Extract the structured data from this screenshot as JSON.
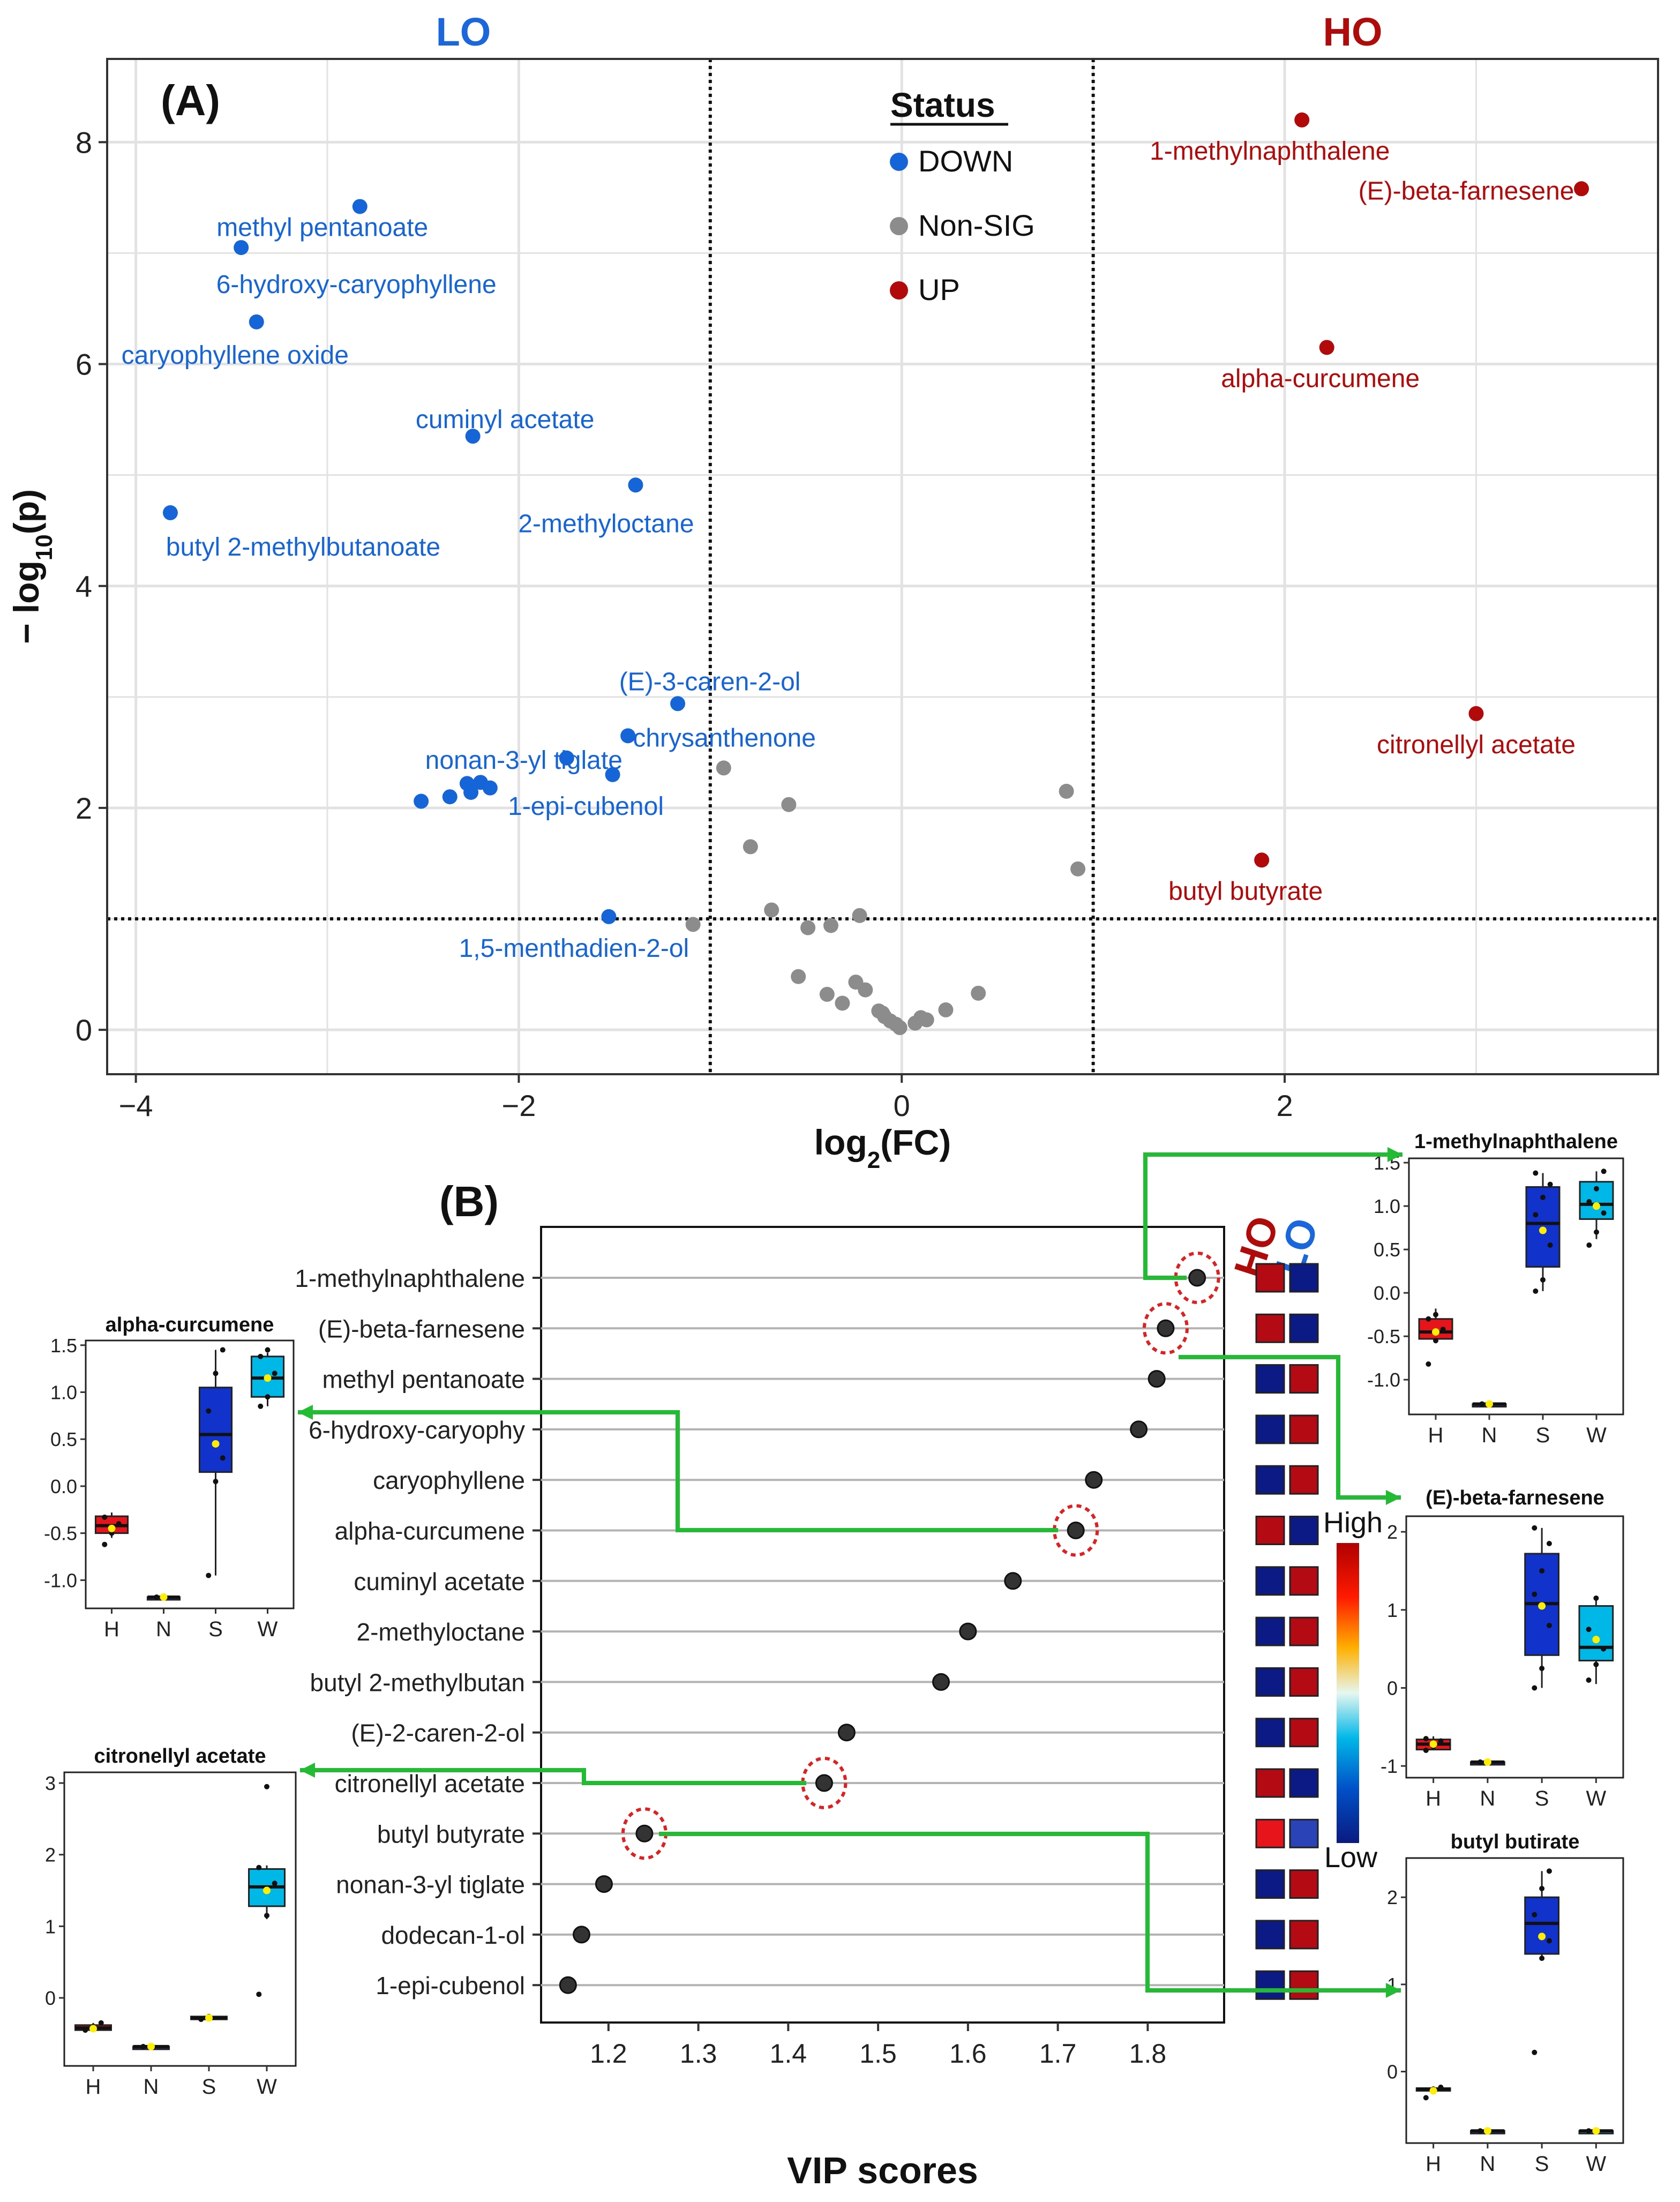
{
  "colors": {
    "down": "#1565d8",
    "nonsig": "#8c8c8c",
    "up": "#b20a0a",
    "lo_header": "#1a66dc",
    "ho_header": "#b00b0b",
    "grid": "#dcdcdc",
    "arrow": "#22bb33",
    "circle": "#e02020",
    "heat_high": "#b00000",
    "heat_low": "#0a1a80",
    "box_H": "#e8141c",
    "box_N": "#2233aa",
    "box_S": "#1133cc",
    "box_W": "#00b8e8",
    "mean_dot": "#ffee00"
  },
  "panel_a": {
    "panel_label": "(A)",
    "lo_label": "LO",
    "ho_label": "HO",
    "legend_title": "Status",
    "legend_items": [
      {
        "label": "DOWN",
        "status": "down"
      },
      {
        "label": "Non-SIG",
        "status": "nonsig"
      },
      {
        "label": "UP",
        "status": "up"
      }
    ]
  },
  "panel_b": {
    "panel_label": "(B)",
    "ho_label": "HO",
    "lo_label": "LO",
    "colorbar_high": "High",
    "colorbar_low": "Low"
  },
  "chart_data": [
    {
      "id": "volcano",
      "type": "scatter",
      "title": "",
      "xlabel": "log2(FC)",
      "ylabel": "−log10(p)",
      "xlim": [
        -4.15,
        3.95
      ],
      "ylim": [
        -0.4,
        8.75
      ],
      "xticks": [
        -4,
        -2,
        0,
        2
      ],
      "yticks": [
        0,
        2,
        4,
        6,
        8
      ],
      "thresholds": {
        "x": [
          -1,
          1
        ],
        "y": 1.0
      },
      "points": [
        {
          "x": 2.09,
          "y": 8.2,
          "status": "up",
          "label": "1-methylnaphthalene"
        },
        {
          "x": 3.55,
          "y": 7.58,
          "status": "up",
          "label": "(E)-beta-farnesene"
        },
        {
          "x": 2.22,
          "y": 6.15,
          "status": "up",
          "label": "alpha-curcumene"
        },
        {
          "x": 3.0,
          "y": 2.85,
          "status": "up",
          "label": "citronellyl acetate"
        },
        {
          "x": 1.88,
          "y": 1.53,
          "status": "up",
          "label": "butyl butyrate"
        },
        {
          "x": -2.83,
          "y": 7.42,
          "status": "down",
          "label": "methyl pentanoate"
        },
        {
          "x": -3.45,
          "y": 7.05,
          "status": "down",
          "label": "6-hydroxy-caryophyllene"
        },
        {
          "x": -3.37,
          "y": 6.38,
          "status": "down",
          "label": "caryophyllene oxide"
        },
        {
          "x": -2.24,
          "y": 5.35,
          "status": "down",
          "label": "cuminyl acetate"
        },
        {
          "x": -1.39,
          "y": 4.91,
          "status": "down",
          "label": "2-methyloctane"
        },
        {
          "x": -3.82,
          "y": 4.66,
          "status": "down",
          "label": "butyl 2-methylbutanoate"
        },
        {
          "x": -1.17,
          "y": 2.94,
          "status": "down",
          "label": "(E)-3-caren-2-ol"
        },
        {
          "x": -1.43,
          "y": 2.65,
          "status": "down",
          "label": "chrysanthenone"
        },
        {
          "x": -1.75,
          "y": 2.45,
          "status": "down",
          "label": "nonan-3-yl tiglate"
        },
        {
          "x": -1.51,
          "y": 2.3,
          "status": "down",
          "label": "1-epi-cubenol"
        },
        {
          "x": -1.53,
          "y": 1.02,
          "status": "down",
          "label": "1,5-menthadien-2-ol"
        },
        {
          "x": -2.51,
          "y": 2.06,
          "status": "down",
          "label": ""
        },
        {
          "x": -2.36,
          "y": 2.1,
          "status": "down",
          "label": ""
        },
        {
          "x": -2.27,
          "y": 2.22,
          "status": "down",
          "label": ""
        },
        {
          "x": -2.25,
          "y": 2.14,
          "status": "down",
          "label": ""
        },
        {
          "x": -2.2,
          "y": 2.23,
          "status": "down",
          "label": ""
        },
        {
          "x": -2.15,
          "y": 2.18,
          "status": "down",
          "label": ""
        },
        {
          "x": -0.93,
          "y": 2.36,
          "status": "nonsig",
          "label": ""
        },
        {
          "x": -0.59,
          "y": 2.03,
          "status": "nonsig",
          "label": ""
        },
        {
          "x": -0.79,
          "y": 1.65,
          "status": "nonsig",
          "label": ""
        },
        {
          "x": -0.68,
          "y": 1.08,
          "status": "nonsig",
          "label": ""
        },
        {
          "x": -0.22,
          "y": 1.03,
          "status": "nonsig",
          "label": ""
        },
        {
          "x": -0.49,
          "y": 0.92,
          "status": "nonsig",
          "label": ""
        },
        {
          "x": -0.37,
          "y": 0.94,
          "status": "nonsig",
          "label": ""
        },
        {
          "x": -1.09,
          "y": 0.95,
          "status": "nonsig",
          "label": ""
        },
        {
          "x": 0.86,
          "y": 2.15,
          "status": "nonsig",
          "label": ""
        },
        {
          "x": 0.92,
          "y": 1.45,
          "status": "nonsig",
          "label": ""
        },
        {
          "x": -0.54,
          "y": 0.48,
          "status": "nonsig",
          "label": ""
        },
        {
          "x": -0.24,
          "y": 0.43,
          "status": "nonsig",
          "label": ""
        },
        {
          "x": -0.19,
          "y": 0.36,
          "status": "nonsig",
          "label": ""
        },
        {
          "x": -0.39,
          "y": 0.32,
          "status": "nonsig",
          "label": ""
        },
        {
          "x": -0.31,
          "y": 0.24,
          "status": "nonsig",
          "label": ""
        },
        {
          "x": 0.4,
          "y": 0.33,
          "status": "nonsig",
          "label": ""
        },
        {
          "x": 0.23,
          "y": 0.18,
          "status": "nonsig",
          "label": ""
        },
        {
          "x": -0.12,
          "y": 0.17,
          "status": "nonsig",
          "label": ""
        },
        {
          "x": -0.09,
          "y": 0.12,
          "status": "nonsig",
          "label": ""
        },
        {
          "x": -0.06,
          "y": 0.08,
          "status": "nonsig",
          "label": ""
        },
        {
          "x": -0.03,
          "y": 0.05,
          "status": "nonsig",
          "label": ""
        },
        {
          "x": -0.01,
          "y": 0.02,
          "status": "nonsig",
          "label": ""
        },
        {
          "x": 0.07,
          "y": 0.06,
          "status": "nonsig",
          "label": ""
        },
        {
          "x": 0.1,
          "y": 0.11,
          "status": "nonsig",
          "label": ""
        },
        {
          "x": 0.13,
          "y": 0.09,
          "status": "nonsig",
          "label": ""
        },
        {
          "x": -0.1,
          "y": 0.15,
          "status": "nonsig",
          "label": ""
        }
      ]
    },
    {
      "id": "vip",
      "type": "scatter",
      "title": "",
      "xlabel": "VIP scores",
      "ylabel": "",
      "xlim": [
        1.125,
        1.885
      ],
      "xticks": [
        1.2,
        1.3,
        1.4,
        1.5,
        1.6,
        1.7,
        1.8
      ],
      "features": [
        {
          "label": "1-methylnaphthalene",
          "vip": 1.855,
          "HO": "high",
          "LO": "low",
          "circled": true
        },
        {
          "label": "(E)-beta-farnesene",
          "vip": 1.82,
          "HO": "high",
          "LO": "low",
          "circled": true
        },
        {
          "label": "methyl pentanoate",
          "vip": 1.81,
          "HO": "low",
          "LO": "high",
          "circled": false
        },
        {
          "label": "6-hydroxy-caryophy",
          "vip": 1.79,
          "HO": "low",
          "LO": "high",
          "circled": false
        },
        {
          "label": "caryophyllene",
          "vip": 1.74,
          "HO": "low",
          "LO": "high",
          "circled": false
        },
        {
          "label": "alpha-curcumene",
          "vip": 1.72,
          "HO": "high",
          "LO": "low",
          "circled": true
        },
        {
          "label": "cuminyl acetate",
          "vip": 1.65,
          "HO": "low",
          "LO": "high",
          "circled": false
        },
        {
          "label": "2-methyloctane",
          "vip": 1.6,
          "HO": "low",
          "LO": "high",
          "circled": false
        },
        {
          "label": "butyl 2-methylbutan",
          "vip": 1.57,
          "HO": "low",
          "LO": "high",
          "circled": false
        },
        {
          "label": "(E)-2-caren-2-ol",
          "vip": 1.465,
          "HO": "low",
          "LO": "high",
          "circled": false
        },
        {
          "label": "citronellyl acetate",
          "vip": 1.44,
          "HO": "high",
          "LO": "low",
          "circled": true
        },
        {
          "label": "butyl butyrate",
          "vip": 1.24,
          "HO": "high",
          "LO": "mid-low",
          "circled": true
        },
        {
          "label": "nonan-3-yl tiglate",
          "vip": 1.195,
          "HO": "low",
          "LO": "high",
          "circled": false
        },
        {
          "label": "dodecan-1-ol",
          "vip": 1.17,
          "HO": "low",
          "LO": "high",
          "circled": false
        },
        {
          "label": "1-epi-cubenol",
          "vip": 1.155,
          "HO": "low",
          "LO": "high",
          "circled": false
        }
      ]
    },
    {
      "id": "box-methylnaphthalene",
      "type": "box",
      "title": "1-methylnaphthalene",
      "categories": [
        "H",
        "N",
        "S",
        "W"
      ],
      "ylim": [
        -1.4,
        1.55
      ],
      "yticks": [
        -1.0,
        -0.5,
        0.0,
        0.5,
        1.0,
        1.5
      ],
      "ytick_labels": [
        "-1.0",
        "-0.5",
        "0.0",
        "0.5",
        "1.0",
        "1.5"
      ],
      "boxes": [
        {
          "group": "H",
          "min": -0.58,
          "q1": -0.53,
          "median": -0.45,
          "q3": -0.3,
          "max": -0.18,
          "mean": -0.45,
          "points": [
            -0.82,
            -0.55,
            -0.42,
            -0.3,
            -0.25
          ]
        },
        {
          "group": "N",
          "min": -1.28,
          "q1": -1.28,
          "median": -1.28,
          "q3": -1.28,
          "max": -1.28,
          "mean": -1.28,
          "points": [
            -1.28,
            -1.28
          ]
        },
        {
          "group": "S",
          "min": 0.02,
          "q1": 0.3,
          "median": 0.8,
          "q3": 1.22,
          "max": 1.38,
          "mean": 0.72,
          "points": [
            0.02,
            0.15,
            0.55,
            0.9,
            1.1,
            1.25,
            1.38
          ]
        },
        {
          "group": "W",
          "min": 0.62,
          "q1": 0.85,
          "median": 1.02,
          "q3": 1.28,
          "max": 1.4,
          "mean": 1.0,
          "points": [
            0.55,
            0.7,
            0.92,
            1.05,
            1.2,
            1.4
          ]
        }
      ]
    },
    {
      "id": "box-farnesene",
      "type": "box",
      "title": "(E)-beta-farnesene",
      "categories": [
        "H",
        "N",
        "S",
        "W"
      ],
      "ylim": [
        -1.15,
        2.2
      ],
      "yticks": [
        -1,
        0,
        1,
        2
      ],
      "ytick_labels": [
        "-1",
        "0",
        "1",
        "2"
      ],
      "boxes": [
        {
          "group": "H",
          "min": -0.8,
          "q1": -0.79,
          "median": -0.72,
          "q3": -0.66,
          "max": -0.62,
          "mean": -0.72,
          "points": [
            -0.8,
            -0.75,
            -0.68,
            -0.65
          ]
        },
        {
          "group": "N",
          "min": -0.95,
          "q1": -0.95,
          "median": -0.95,
          "q3": -0.95,
          "max": -0.95,
          "mean": -0.95,
          "points": [
            -0.95,
            -0.95
          ]
        },
        {
          "group": "S",
          "min": 0.0,
          "q1": 0.42,
          "median": 1.08,
          "q3": 1.72,
          "max": 2.05,
          "mean": 1.05,
          "points": [
            0.0,
            0.25,
            0.8,
            1.2,
            1.5,
            1.85,
            2.05
          ]
        },
        {
          "group": "W",
          "min": 0.05,
          "q1": 0.35,
          "median": 0.52,
          "q3": 1.05,
          "max": 1.15,
          "mean": 0.62,
          "points": [
            0.1,
            0.3,
            0.5,
            0.75,
            1.15
          ]
        }
      ]
    },
    {
      "id": "box-butyl-butirate",
      "type": "box",
      "title": "butyl butirate",
      "categories": [
        "H",
        "N",
        "S",
        "W"
      ],
      "ylim": [
        -0.82,
        2.45
      ],
      "yticks": [
        0,
        1,
        2
      ],
      "ytick_labels": [
        "0",
        "1",
        "2"
      ],
      "boxes": [
        {
          "group": "H",
          "min": -0.2,
          "q1": -0.2,
          "median": -0.2,
          "q3": -0.19,
          "max": -0.18,
          "mean": -0.22,
          "points": [
            -0.3,
            -0.2,
            -0.18
          ]
        },
        {
          "group": "N",
          "min": -0.68,
          "q1": -0.68,
          "median": -0.68,
          "q3": -0.68,
          "max": -0.68,
          "mean": -0.68,
          "points": [
            -0.68,
            -0.68
          ]
        },
        {
          "group": "S",
          "min": 1.3,
          "q1": 1.35,
          "median": 1.7,
          "q3": 2.0,
          "max": 2.3,
          "mean": 1.55,
          "points": [
            0.22,
            1.3,
            1.5,
            1.8,
            2.1,
            2.3
          ]
        },
        {
          "group": "W",
          "min": -0.68,
          "q1": -0.68,
          "median": -0.68,
          "q3": -0.68,
          "max": -0.68,
          "mean": -0.68,
          "points": [
            -0.68,
            -0.68
          ]
        }
      ]
    },
    {
      "id": "box-curcumene",
      "type": "box",
      "title": "alpha-curcumene",
      "categories": [
        "H",
        "N",
        "S",
        "W"
      ],
      "ylim": [
        -1.3,
        1.55
      ],
      "yticks": [
        -1.0,
        -0.5,
        0.0,
        0.5,
        1.0,
        1.5
      ],
      "ytick_labels": [
        "-1.0",
        "-0.5",
        "0.0",
        "0.5",
        "1.0",
        "1.5"
      ],
      "boxes": [
        {
          "group": "H",
          "min": -0.55,
          "q1": -0.5,
          "median": -0.42,
          "q3": -0.32,
          "max": -0.28,
          "mean": -0.45,
          "points": [
            -0.62,
            -0.5,
            -0.4,
            -0.33
          ]
        },
        {
          "group": "N",
          "min": -1.18,
          "q1": -1.18,
          "median": -1.18,
          "q3": -1.18,
          "max": -1.18,
          "mean": -1.18,
          "points": [
            -1.18,
            -1.18
          ]
        },
        {
          "group": "S",
          "min": -0.95,
          "q1": 0.15,
          "median": 0.55,
          "q3": 1.05,
          "max": 1.45,
          "mean": 0.45,
          "points": [
            -0.95,
            0.05,
            0.3,
            0.8,
            1.2,
            1.45
          ]
        },
        {
          "group": "W",
          "min": 0.85,
          "q1": 0.95,
          "median": 1.15,
          "q3": 1.38,
          "max": 1.42,
          "mean": 1.15,
          "points": [
            0.85,
            0.95,
            1.2,
            1.38,
            1.45
          ]
        }
      ]
    },
    {
      "id": "box-citronellyl",
      "type": "box",
      "title": "citronellyl acetate",
      "categories": [
        "H",
        "N",
        "S",
        "W"
      ],
      "ylim": [
        -0.95,
        3.15
      ],
      "yticks": [
        0,
        1,
        2,
        3
      ],
      "ytick_labels": [
        "0",
        "1",
        "2",
        "3"
      ],
      "boxes": [
        {
          "group": "H",
          "min": -0.45,
          "q1": -0.45,
          "median": -0.42,
          "q3": -0.38,
          "max": -0.35,
          "mean": -0.43,
          "points": [
            -0.45,
            -0.4,
            -0.35
          ]
        },
        {
          "group": "N",
          "min": -0.68,
          "q1": -0.68,
          "median": -0.68,
          "q3": -0.68,
          "max": -0.68,
          "mean": -0.68,
          "points": [
            -0.68,
            -0.68
          ]
        },
        {
          "group": "S",
          "min": -0.3,
          "q1": -0.3,
          "median": -0.28,
          "q3": -0.26,
          "max": -0.25,
          "mean": -0.28,
          "points": [
            -0.3,
            -0.26
          ]
        },
        {
          "group": "W",
          "min": 1.1,
          "q1": 1.28,
          "median": 1.55,
          "q3": 1.8,
          "max": 1.85,
          "mean": 1.5,
          "points": [
            0.05,
            1.15,
            1.6,
            1.82,
            2.95
          ]
        }
      ]
    }
  ]
}
